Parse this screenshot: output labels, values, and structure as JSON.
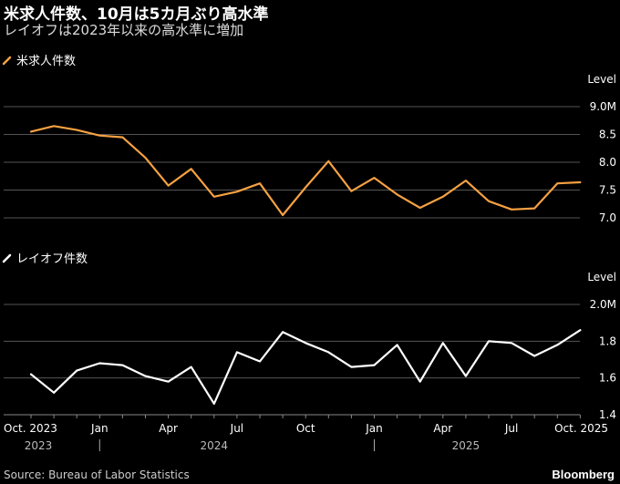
{
  "header": {
    "title": "米求人件数、10月は5カ月ぶり高水準",
    "subtitle": "レイオフは2023年以来の高水準に増加"
  },
  "footer": {
    "source": "Source: Bureau of Labor Statistics",
    "logo": "Bloomberg"
  },
  "colors": {
    "background": "#000000",
    "openings": "#f5a142",
    "layoffs": "#ffffff",
    "grid": "#555555"
  },
  "chart_data": [
    {
      "type": "line",
      "legend": "米求人件数",
      "axis_title": "Level",
      "y_ticks": [
        "9.0M",
        "8.5",
        "8.0",
        "7.5",
        "7.0"
      ],
      "y_tick_values": [
        9.0,
        8.5,
        8.0,
        7.5,
        7.0
      ],
      "ylim": [
        7.0,
        9.0
      ],
      "color": "#f5a142",
      "x": [
        "2023-10",
        "2023-11",
        "2023-12",
        "2024-01",
        "2024-02",
        "2024-03",
        "2024-04",
        "2024-05",
        "2024-06",
        "2024-07",
        "2024-08",
        "2024-09",
        "2024-10",
        "2024-11",
        "2024-12",
        "2025-01",
        "2025-02",
        "2025-03",
        "2025-04",
        "2025-05",
        "2025-06",
        "2025-07",
        "2025-08",
        "2025-09",
        "2025-10"
      ],
      "values": [
        8.55,
        8.65,
        8.58,
        8.48,
        8.45,
        8.08,
        7.58,
        7.88,
        7.38,
        7.47,
        7.62,
        7.05,
        7.55,
        8.02,
        7.48,
        7.72,
        7.42,
        7.18,
        7.38,
        7.67,
        7.3,
        7.15,
        7.17,
        7.62,
        7.64
      ]
    },
    {
      "type": "line",
      "legend": "レイオフ件数",
      "axis_title": "Level",
      "y_ticks": [
        "2.0M",
        "1.8",
        "1.6",
        "1.4"
      ],
      "y_tick_values": [
        2.0,
        1.8,
        1.6,
        1.4
      ],
      "ylim": [
        1.4,
        2.0
      ],
      "color": "#ffffff",
      "x": [
        "2023-10",
        "2023-11",
        "2023-12",
        "2024-01",
        "2024-02",
        "2024-03",
        "2024-04",
        "2024-05",
        "2024-06",
        "2024-07",
        "2024-08",
        "2024-09",
        "2024-10",
        "2024-11",
        "2024-12",
        "2025-01",
        "2025-02",
        "2025-03",
        "2025-04",
        "2025-05",
        "2025-06",
        "2025-07",
        "2025-08",
        "2025-09",
        "2025-10"
      ],
      "values": [
        1.62,
        1.52,
        1.64,
        1.68,
        1.67,
        1.61,
        1.58,
        1.66,
        1.46,
        1.74,
        1.69,
        1.85,
        1.79,
        1.74,
        1.66,
        1.67,
        1.78,
        1.58,
        1.79,
        1.61,
        1.8,
        1.79,
        1.72,
        1.78,
        1.86
      ]
    }
  ],
  "x_axis": {
    "month_labels": [
      {
        "x": "2023-10",
        "label": "Oct. 2023",
        "anchor": "start"
      },
      {
        "x": "2024-01",
        "label": "Jan",
        "anchor": "middle"
      },
      {
        "x": "2024-04",
        "label": "Apr",
        "anchor": "middle"
      },
      {
        "x": "2024-07",
        "label": "Jul",
        "anchor": "middle"
      },
      {
        "x": "2024-10",
        "label": "Oct",
        "anchor": "middle"
      },
      {
        "x": "2025-01",
        "label": "Jan",
        "anchor": "middle"
      },
      {
        "x": "2025-04",
        "label": "Apr",
        "anchor": "middle"
      },
      {
        "x": "2025-07",
        "label": "Jul",
        "anchor": "middle"
      },
      {
        "x": "2025-10",
        "label": "Oct. 2025",
        "anchor": "end"
      }
    ],
    "year_labels": [
      {
        "x": "2023-10",
        "label": "2023"
      },
      {
        "x": "2024-06",
        "label": "2024"
      },
      {
        "x": "2025-05",
        "label": "2025"
      }
    ],
    "year_dividers": [
      "2024-01",
      "2025-01"
    ]
  }
}
